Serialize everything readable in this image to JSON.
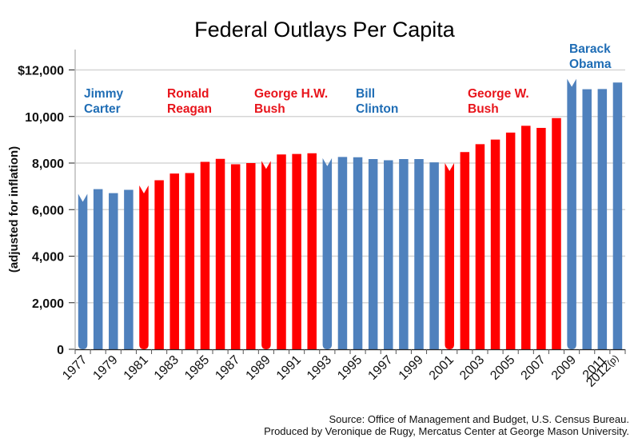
{
  "chart_data": {
    "type": "bar",
    "title": "Federal Outlays Per Capita",
    "xlabel": "",
    "ylabel": "(adjusted for inflation)",
    "ylim": [
      0,
      12000
    ],
    "yticks": [
      0,
      2000,
      4000,
      6000,
      8000,
      10000,
      12000
    ],
    "ytick_labels": [
      "0",
      "2,000",
      "4,000",
      "6,000",
      "8,000",
      "10,000",
      "$12,000"
    ],
    "grid": true,
    "categories": [
      "1977",
      "1978",
      "1979",
      "1980",
      "1981",
      "1982",
      "1983",
      "1984",
      "1985",
      "1986",
      "1987",
      "1988",
      "1989",
      "1990",
      "1991",
      "1992",
      "1993",
      "1994",
      "1995",
      "1996",
      "1997",
      "1998",
      "1999",
      "2000",
      "2001",
      "2002",
      "2003",
      "2004",
      "2005",
      "2006",
      "2007",
      "2008",
      "2009",
      "2010",
      "2011",
      "2012"
    ],
    "xtick_labels": [
      "1977",
      "1979",
      "1981",
      "1983",
      "1985",
      "1987",
      "1989",
      "1991",
      "1993",
      "1995",
      "1997",
      "1999",
      "2001",
      "2003",
      "2005",
      "2007",
      "2009",
      "2011",
      "2012(p)"
    ],
    "values": [
      6680,
      6880,
      6710,
      6850,
      7040,
      7260,
      7550,
      7570,
      8050,
      8180,
      7950,
      8000,
      8090,
      8370,
      8390,
      8420,
      8210,
      8260,
      8250,
      8170,
      8120,
      8170,
      8170,
      8030,
      8000,
      8470,
      8810,
      9010,
      9310,
      9600,
      9510,
      9930,
      11620,
      11170,
      11180,
      11460
    ],
    "party": [
      "D",
      "D",
      "D",
      "D",
      "R",
      "R",
      "R",
      "R",
      "R",
      "R",
      "R",
      "R",
      "R",
      "R",
      "R",
      "R",
      "D",
      "D",
      "D",
      "D",
      "D",
      "D",
      "D",
      "D",
      "R",
      "R",
      "R",
      "R",
      "R",
      "R",
      "R",
      "R",
      "D",
      "D",
      "D",
      "D"
    ],
    "transition_years": [
      "1977",
      "1981",
      "1989",
      "1993",
      "2001",
      "2009"
    ],
    "colors": {
      "D": "#4F81BD",
      "R": "#FF0000",
      "D_label": "#1F6DB5",
      "R_label": "#E8141B"
    },
    "presidents": [
      {
        "name_lines": [
          "Jimmy",
          "Carter"
        ],
        "party": "D",
        "start": "1977"
      },
      {
        "name_lines": [
          "Ronald",
          "Reagan"
        ],
        "party": "R",
        "start": "1981"
      },
      {
        "name_lines": [
          "George H.W.",
          "Bush"
        ],
        "party": "R",
        "start": "1989"
      },
      {
        "name_lines": [
          "Bill",
          "Clinton"
        ],
        "party": "D",
        "start": "1993"
      },
      {
        "name_lines": [
          "George W.",
          "Bush"
        ],
        "party": "R",
        "start": "2001"
      },
      {
        "name_lines": [
          "Barack",
          "Obama"
        ],
        "party": "D",
        "start": "2009"
      }
    ]
  },
  "source": {
    "line1": "Source: Office of Management and Budget, U.S. Census Bureau.",
    "line2": "Produced by Veronique de Rugy, Mercatus Center at George Mason University."
  }
}
